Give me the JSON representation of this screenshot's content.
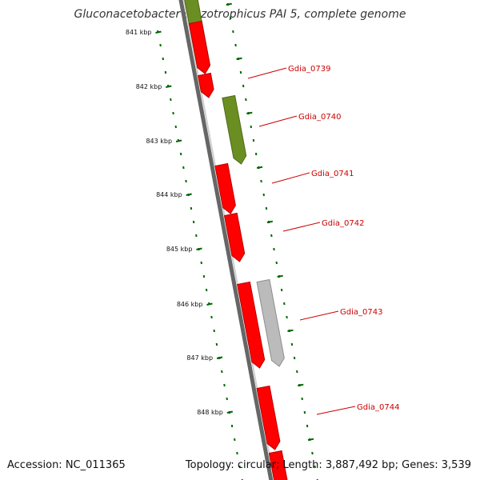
{
  "title": "Gluconacetobacter diazotrophicus PAI 5, complete genome",
  "accession": "Accession: NC_011365",
  "summary": "Topology: circular; Length: 3,887,492 bp; Genes: 3,539",
  "colors": {
    "backbone": "#777777",
    "cds": "#ff0000",
    "rna": "#6b8e23",
    "misc": "#bbbbbb",
    "tick": "#006600",
    "label_text": "#cc0000"
  },
  "scale": {
    "labels": [
      "841 kbp",
      "842 kbp",
      "843 kbp",
      "844 kbp",
      "845 kbp",
      "846 kbp",
      "847 kbp",
      "848 kbp"
    ]
  },
  "genes": [
    {
      "label": "",
      "lane": "top",
      "kind": "cds"
    },
    {
      "label": "",
      "lane": "top",
      "kind": "rna"
    },
    {
      "label": "Gdia_0739",
      "lane": "inner",
      "kind": "cds"
    },
    {
      "label": "",
      "lane": "top",
      "kind": "cds"
    },
    {
      "label": "Gdia_0740",
      "lane": "outer",
      "kind": "rna"
    },
    {
      "label": "Gdia_0741",
      "lane": "inner",
      "kind": "cds"
    },
    {
      "label": "Gdia_0742",
      "lane": "inner",
      "kind": "cds"
    },
    {
      "label": "",
      "lane": "inner",
      "kind": "cds"
    },
    {
      "label": "Gdia_0743",
      "lane": "outer",
      "kind": "misc"
    },
    {
      "label": "Gdia_0744",
      "lane": "inner",
      "kind": "cds"
    },
    {
      "label": "",
      "lane": "inner",
      "kind": "cds"
    }
  ]
}
